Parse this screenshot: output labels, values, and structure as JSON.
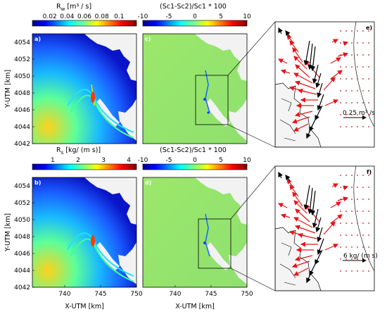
{
  "chart_data": [
    {
      "type": "heatmap",
      "panel_label": "a)",
      "colorbar_title_html": "R",
      "colorbar_title_sub": "w",
      "colorbar_title_unit": " [m³ / s]",
      "colorbar_ticks": [
        "0.02",
        "0.04",
        "0.06",
        "0.08",
        "0.1"
      ],
      "colorbar_tick_values": [
        0.02,
        0.04,
        0.06,
        0.08,
        0.1
      ],
      "colorbar_range": [
        0,
        0.12
      ],
      "ylabel": "Y-UTM [km]",
      "yticks": [
        "4054",
        "4052",
        "4050",
        "4048",
        "4046",
        "4044",
        "4042"
      ],
      "ylim": [
        4042,
        4055
      ]
    },
    {
      "type": "heatmap",
      "panel_label": "c)",
      "colorbar_title": "(Sc1-Sc2)/Sc1 * 100",
      "colorbar_ticks": [
        "-10",
        "-5",
        "0",
        "5",
        "10"
      ],
      "colorbar_range": [
        -10,
        10
      ]
    },
    {
      "type": "vector-field",
      "panel_label": "e)",
      "scale_label": "0.25 m³ /s"
    },
    {
      "type": "heatmap",
      "panel_label": "b)",
      "colorbar_title_html": "R",
      "colorbar_title_sub": "s",
      "colorbar_title_unit": " [kg/ (m s)]",
      "colorbar_ticks": [
        "1",
        "2",
        "3",
        "4"
      ],
      "colorbar_tick_values": [
        1,
        2,
        3,
        4
      ],
      "colorbar_range": [
        0.2,
        4.3
      ],
      "ylabel": "Y-UTM [km]",
      "xlabel": "X-UTM [km]",
      "yticks": [
        "4054",
        "4052",
        "4050",
        "4048",
        "4046",
        "4044",
        "4042"
      ],
      "xticks": [
        "740",
        "745",
        "750"
      ],
      "xlim": [
        735.5,
        750
      ],
      "ylim": [
        4042,
        4055
      ]
    },
    {
      "type": "heatmap",
      "panel_label": "d)",
      "colorbar_title": "(Sc1-Sc2)/Sc1 * 100",
      "colorbar_ticks": [
        "-10",
        "-5",
        "0",
        "5",
        "10"
      ],
      "colorbar_range": [
        -10,
        10
      ],
      "xlabel": "X-UTM [km]",
      "xticks": [
        "740",
        "745",
        "750"
      ]
    },
    {
      "type": "vector-field",
      "panel_label": "f)",
      "scale_label": "6 kg/ (m s)"
    }
  ]
}
